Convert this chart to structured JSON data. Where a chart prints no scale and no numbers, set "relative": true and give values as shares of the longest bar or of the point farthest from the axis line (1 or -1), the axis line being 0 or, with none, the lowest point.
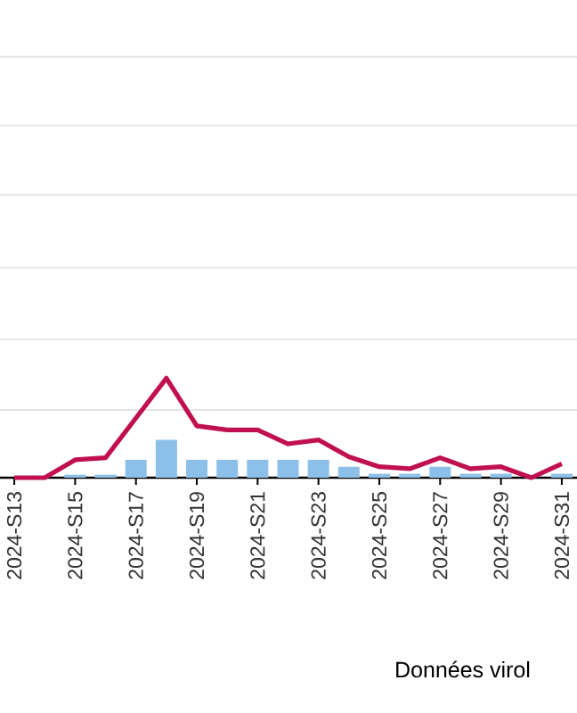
{
  "chart_data": {
    "type": "bar",
    "xlabel": "Données virol",
    "relative": true,
    "ref_lines": [
      {
        "axis": "y",
        "value": 0.68,
        "color": "#e5e5e5"
      },
      {
        "axis": "y",
        "value": 1.39,
        "color": "#e5e5e5"
      },
      {
        "axis": "y",
        "value": 2.11,
        "color": "#e5e5e5"
      },
      {
        "axis": "y",
        "value": 2.84,
        "color": "#e5e5e5"
      },
      {
        "axis": "y",
        "value": 3.54,
        "color": "#e5e5e5"
      },
      {
        "axis": "y",
        "value": 4.23,
        "color": "#e5e5e5"
      }
    ],
    "categories": [
      "2024-S13",
      null,
      "2024-S15",
      null,
      "2024-S17",
      null,
      "2024-S19",
      null,
      "2024-S21",
      null,
      "2024-S23",
      null,
      "2024-S25",
      null,
      "2024-S27",
      null,
      "2024-S29",
      null,
      "2024-S31"
    ],
    "series": [
      {
        "type": "bar",
        "color": "#8cc0e8",
        "values": [
          0,
          0,
          0.03,
          0.03,
          0.18,
          0.38,
          0.18,
          0.18,
          0.18,
          0.18,
          0.18,
          0.11,
          0.04,
          0.04,
          0.11,
          0.04,
          0.04,
          null,
          0.04
        ]
      },
      {
        "type": "line",
        "color": "#c0104f",
        "values": [
          0,
          0,
          0.18,
          0.2,
          0.6,
          1,
          0.52,
          0.48,
          0.48,
          0.34,
          0.38,
          0.21,
          0.11,
          0.09,
          0.2,
          0.09,
          0.11,
          0,
          0.14
        ]
      }
    ]
  }
}
